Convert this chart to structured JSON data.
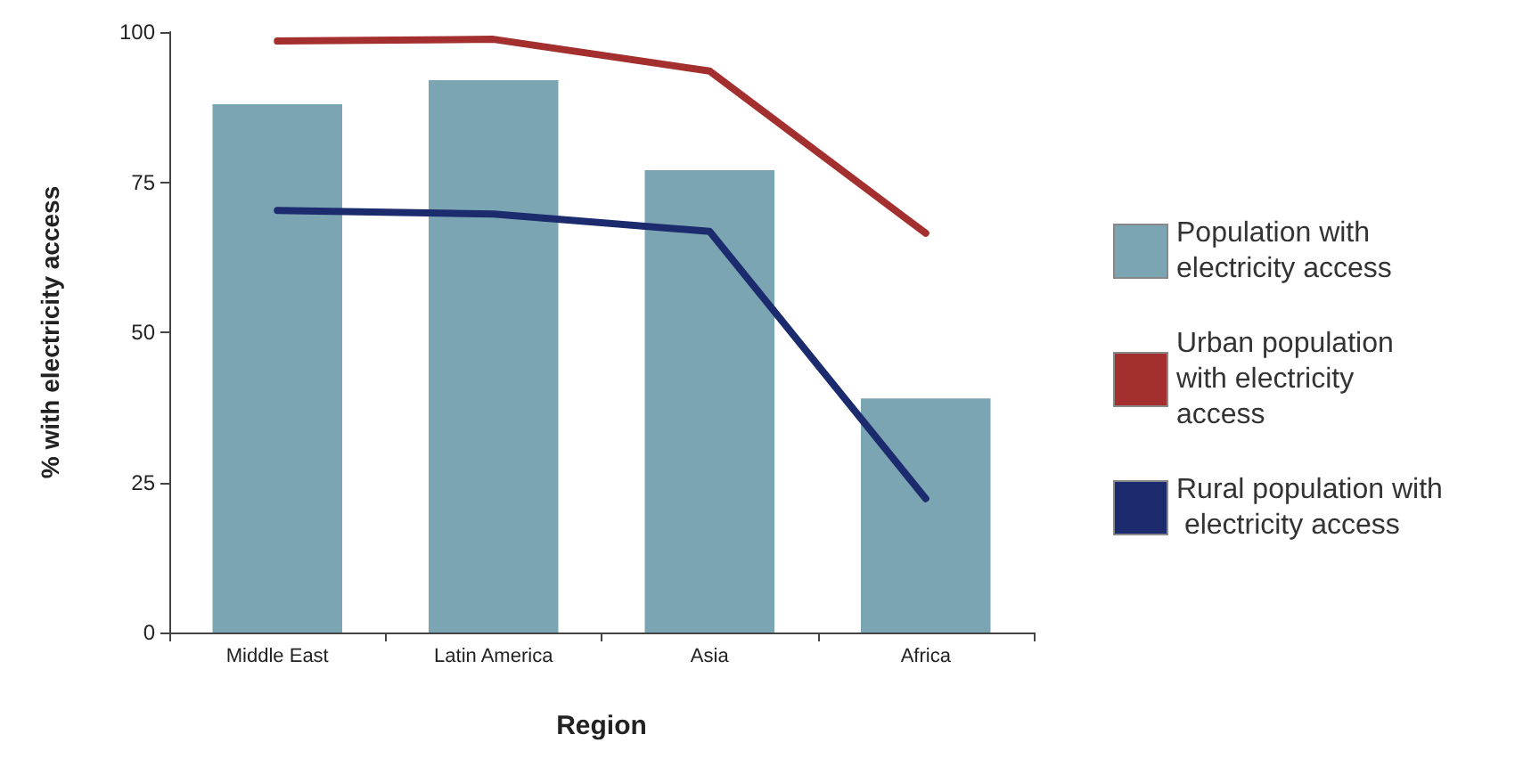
{
  "chart_data": {
    "type": "bar",
    "xlabel": "Region",
    "ylabel": "% with electricity access",
    "categories": [
      "Middle East",
      "Latin America",
      "Asia",
      "Africa"
    ],
    "series": [
      {
        "name": "Population with electricity access",
        "color": "#7ba5b2",
        "values": [
          88,
          92,
          77,
          39
        ]
      },
      {
        "name": "Urban population with electricity access",
        "type": "line",
        "color": "#a3302e",
        "values": [
          98.5,
          98.8,
          93.5,
          66.5
        ]
      },
      {
        "name": "Rural population with electricity access",
        "type": "line",
        "color": "#1c2a6e",
        "values": [
          70.3,
          69.7,
          66.8,
          22.3
        ]
      }
    ],
    "ylim": [
      0,
      100
    ],
    "yticks": [
      0,
      25,
      50,
      75,
      100
    ],
    "grid": false,
    "legend": "right",
    "marker": "none",
    "line_style": "solid"
  }
}
